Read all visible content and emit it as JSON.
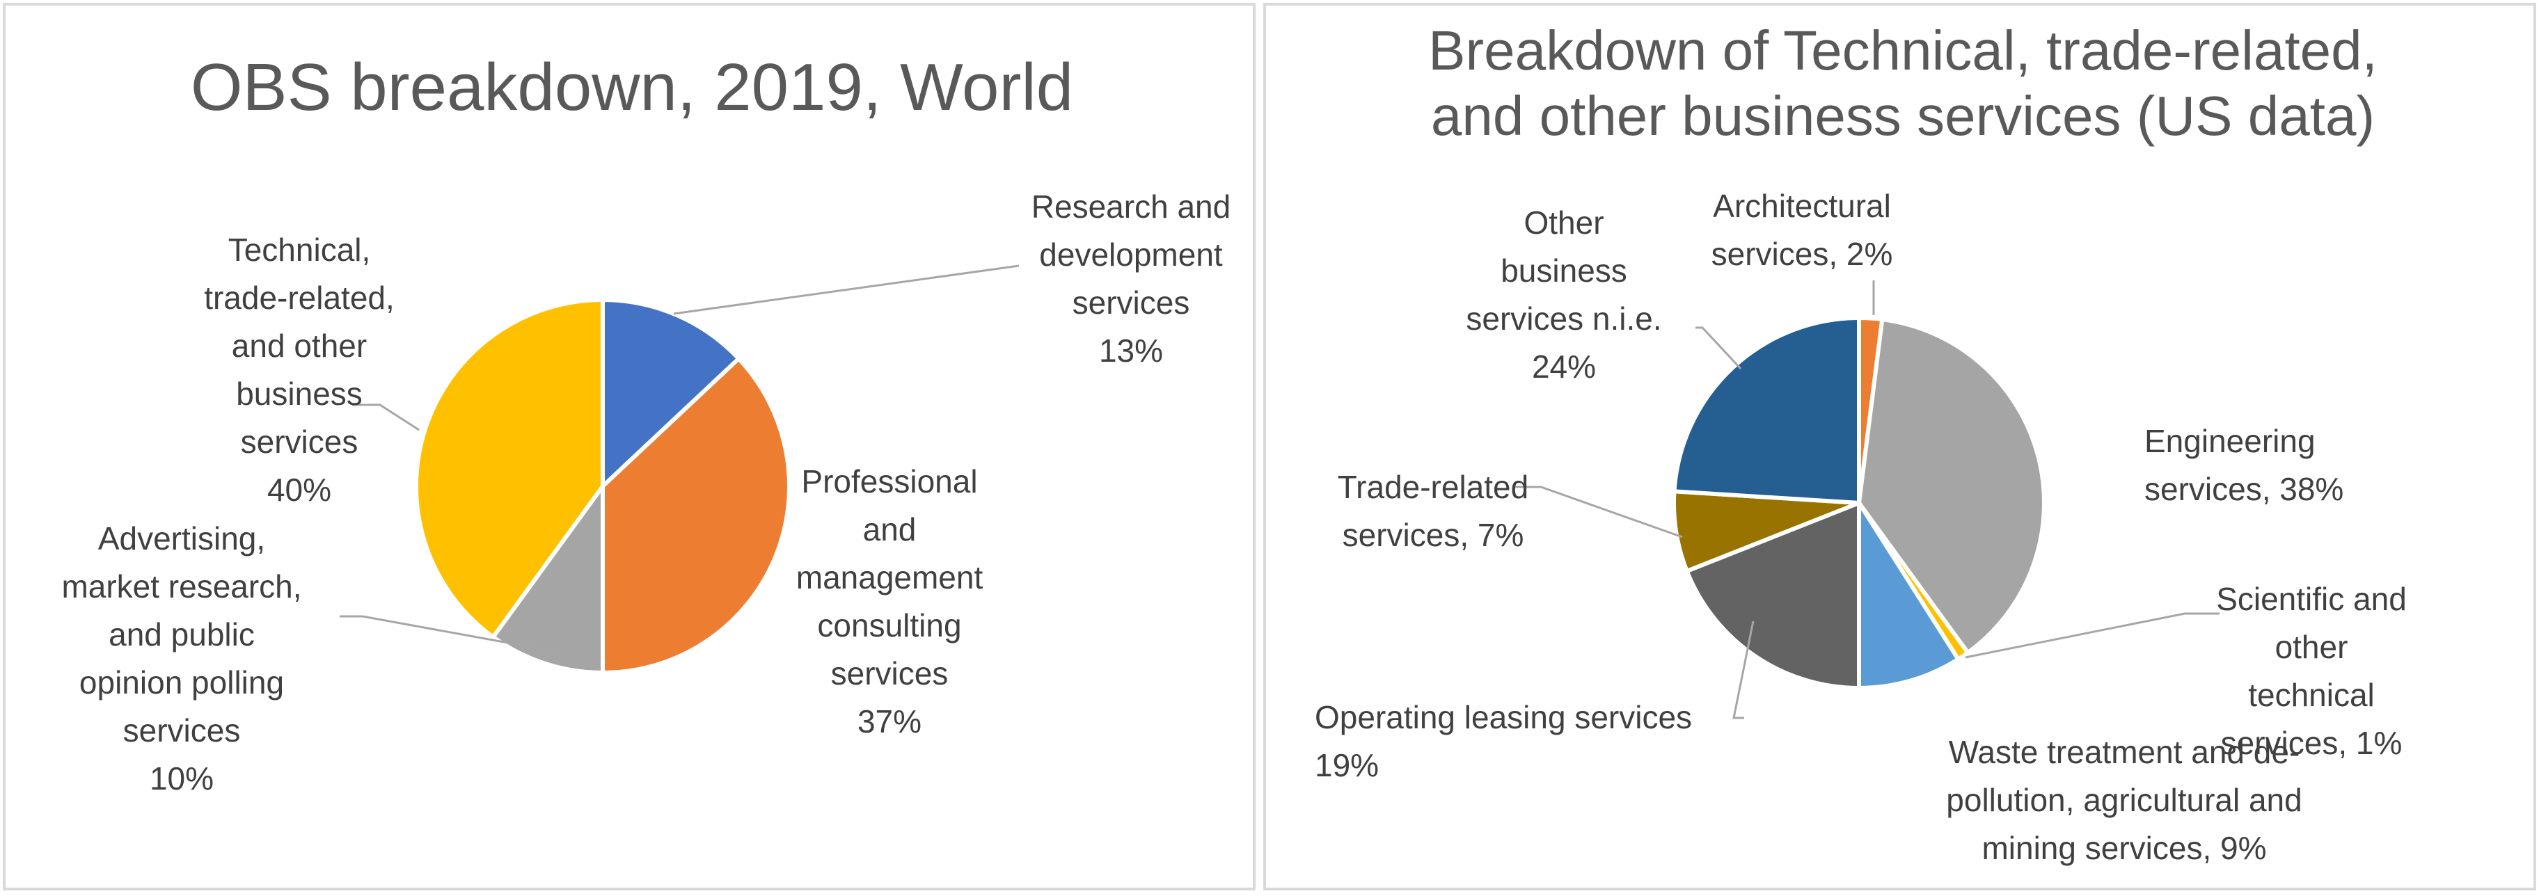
{
  "chart_data": [
    {
      "type": "pie",
      "title": "OBS breakdown, 2019, World",
      "slices": [
        {
          "name": "Research and development services",
          "value": 13,
          "color": "#4472C4",
          "label_lines": [
            "Research and",
            "development",
            "services",
            "13%"
          ]
        },
        {
          "name": "Professional and management consulting services",
          "value": 37,
          "color": "#ED7D31",
          "label_lines": [
            "Professional",
            "and",
            "management",
            "consulting",
            "services",
            "37%"
          ]
        },
        {
          "name": "Advertising, market research, and public opinion polling services",
          "value": 10,
          "color": "#A5A5A5",
          "label_lines": [
            "Advertising,",
            "market research,",
            "and public",
            "opinion polling",
            "services",
            "10%"
          ]
        },
        {
          "name": "Technical, trade-related, and other business services",
          "value": 40,
          "color": "#FFC000",
          "label_lines": [
            "Technical,",
            "trade-related,",
            "and other",
            "business",
            "services",
            "40%"
          ]
        }
      ]
    },
    {
      "type": "pie",
      "title_lines": [
        "Breakdown of Technical, trade-related,",
        "and other business services (US data)"
      ],
      "slices": [
        {
          "name": "Architectural services",
          "value": 2,
          "color": "#ED7D31",
          "label_lines": [
            "Architectural",
            "services, 2%"
          ]
        },
        {
          "name": "Engineering services",
          "value": 38,
          "color": "#A5A5A5",
          "label_lines": [
            "Engineering",
            "services, 38%"
          ]
        },
        {
          "name": "Scientific and other technical services",
          "value": 1,
          "color": "#FFC000",
          "label_lines": [
            "Scientific and",
            "other",
            "technical",
            "services, 1%"
          ]
        },
        {
          "name": "Waste treatment and de-pollution, agricultural and mining services",
          "value": 9,
          "color": "#5B9BD5",
          "label_lines": [
            "Waste treatment and de-",
            "pollution, agricultural and",
            "mining services, 9%"
          ]
        },
        {
          "name": "Operating leasing services",
          "value": 19,
          "color": "#636363",
          "label_lines": [
            "Operating leasing services",
            "19%"
          ]
        },
        {
          "name": "Trade-related services",
          "value": 7,
          "color": "#997300",
          "label_lines": [
            "Trade-related",
            "services, 7%"
          ]
        },
        {
          "name": "Other business services n.i.e.",
          "value": 24,
          "color": "#255E91",
          "label_lines": [
            "Other",
            "business",
            "services n.i.e.",
            "24%"
          ]
        }
      ]
    }
  ]
}
